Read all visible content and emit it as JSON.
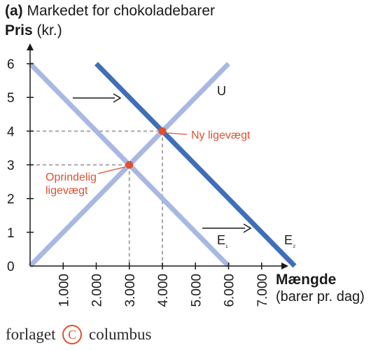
{
  "chart_data": {
    "type": "line",
    "title_prefix": "(a)",
    "title": "Markedet for chokoladebarer",
    "ylabel_bold": "Pris",
    "ylabel_unit": "(kr.)",
    "xlabel": "Mængde",
    "xlabel_unit": "(barer pr. dag)",
    "xlim": [
      0,
      8000
    ],
    "ylim": [
      0,
      6
    ],
    "x_ticks": [
      "1.000",
      "2.000",
      "3.000",
      "4.000",
      "5.000",
      "6.000",
      "7.000"
    ],
    "x_tick_values": [
      1000,
      2000,
      3000,
      4000,
      5000,
      6000,
      7000
    ],
    "y_ticks": [
      "0",
      "1",
      "2",
      "3",
      "4",
      "5",
      "6"
    ],
    "y_tick_values": [
      0,
      1,
      2,
      3,
      4,
      5,
      6
    ],
    "grid": false,
    "series": [
      {
        "name": "U",
        "color": "#a9b8e3",
        "points": [
          [
            0,
            0
          ],
          [
            6000,
            6
          ]
        ]
      },
      {
        "name": "E₁",
        "color": "#a9b8e3",
        "points": [
          [
            0,
            6
          ],
          [
            6000,
            0
          ]
        ]
      },
      {
        "name": "E₂",
        "color": "#3e6fb8",
        "points": [
          [
            2000,
            6
          ],
          [
            8000,
            0
          ]
        ]
      }
    ],
    "equilibria": [
      {
        "label_lines": [
          "Oprindelig",
          "ligevægt"
        ],
        "x": 3000,
        "y": 3,
        "color": "#e0502f"
      },
      {
        "label_lines": [
          "Ny ligevægt"
        ],
        "x": 4000,
        "y": 4,
        "color": "#e0502f"
      }
    ],
    "annotations": [
      "shift-arrow-upper",
      "shift-arrow-lower"
    ]
  },
  "footer": {
    "publisher_left": "forlaget",
    "publisher_symbol": "C",
    "publisher_right": "columbus"
  }
}
